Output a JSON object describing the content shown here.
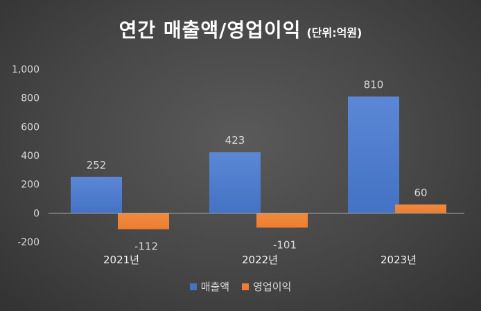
{
  "chart_data": {
    "type": "bar",
    "title": "연간 매출액/영업이익",
    "unit_label": "(단위:억원)",
    "categories": [
      "2021년",
      "2022년",
      "2023년"
    ],
    "series": [
      {
        "name": "매출액",
        "values": [
          252,
          423,
          810
        ],
        "color": "#4472c4"
      },
      {
        "name": "영업이익",
        "values": [
          -112,
          -101,
          60
        ],
        "color": "#ed7d31"
      }
    ],
    "y_ticks": [
      "1,000",
      "800",
      "600",
      "400",
      "200",
      "0",
      "-200"
    ],
    "ylim": [
      -200,
      1000
    ],
    "grid": false,
    "legend_position": "bottom"
  }
}
